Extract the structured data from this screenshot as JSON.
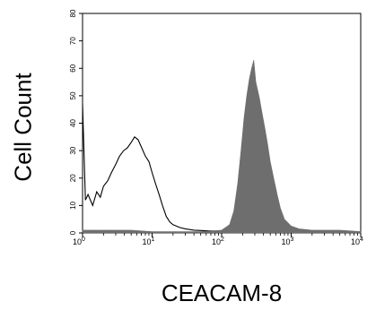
{
  "chart_data": {
    "type": "area",
    "xlabel": "CEACAM-8",
    "ylabel": "Cell Count",
    "x_scale": "log",
    "xlim": [
      1,
      10000
    ],
    "ylim": [
      0,
      80
    ],
    "x_ticks": [
      {
        "base": "10",
        "exp": "0",
        "value": 1
      },
      {
        "base": "10",
        "exp": "1",
        "value": 10
      },
      {
        "base": "10",
        "exp": "2",
        "value": 100
      },
      {
        "base": "10",
        "exp": "3",
        "value": 1000
      },
      {
        "base": "10",
        "exp": "4",
        "value": 10000
      }
    ],
    "y_ticks": [
      "0",
      "10",
      "20",
      "30",
      "40",
      "50",
      "60",
      "70",
      "80"
    ],
    "grid": false,
    "series": [
      {
        "style": "outline",
        "color": "#000000",
        "x": [
          1.0,
          1.1,
          1.2,
          1.4,
          1.6,
          1.8,
          2.0,
          2.3,
          2.6,
          3.0,
          3.4,
          3.9,
          4.4,
          5.0,
          5.6,
          6.3,
          7.1,
          8.0,
          9.0,
          10.0,
          11.2,
          12.6,
          14.1,
          16.0,
          18.0,
          20.0,
          25.0,
          30.0,
          40.0,
          60.0,
          100.0,
          150.0,
          200.0,
          300.0
        ],
        "y": [
          47,
          12,
          14,
          10,
          15,
          13,
          17,
          19,
          22,
          25,
          28,
          30,
          31,
          33,
          35,
          34,
          31,
          28,
          26,
          22,
          18,
          14,
          10,
          6,
          4,
          3,
          2,
          1.5,
          1,
          0.8,
          0.6,
          0.5,
          0.3,
          0.2
        ]
      },
      {
        "style": "filled",
        "color": "#6e6e6e",
        "x": [
          1.0,
          2.0,
          5.0,
          10.0,
          20.0,
          50.0,
          100.0,
          130.0,
          150.0,
          170.0,
          190.0,
          210.0,
          230.0,
          250.0,
          270.0,
          290.0,
          310.0,
          330.0,
          350.0,
          380.0,
          420.0,
          460.0,
          500.0,
          560.0,
          630.0,
          700.0,
          800.0,
          1000.0,
          1300.0,
          2000.0,
          5000.0,
          10000.0
        ],
        "y": [
          1,
          1,
          1,
          0.5,
          0.5,
          0.5,
          1,
          3,
          8,
          18,
          30,
          42,
          50,
          56,
          60,
          63,
          55,
          52,
          49,
          44,
          38,
          32,
          26,
          20,
          14,
          9,
          5,
          2.5,
          1.5,
          1,
          1,
          0.5
        ]
      }
    ]
  }
}
